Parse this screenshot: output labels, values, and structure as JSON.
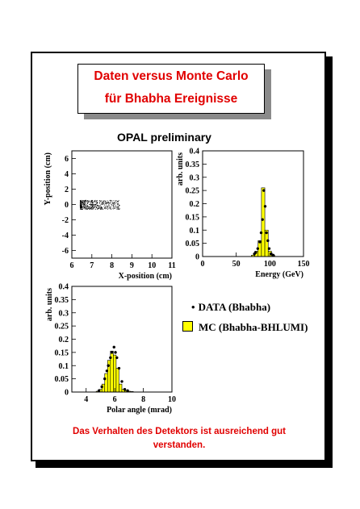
{
  "title": {
    "line1": "Daten versus Monte Carlo",
    "line2": "für Bhabha Ereignisse"
  },
  "subtitle": "OPAL preliminary",
  "legend": {
    "data_marker": "•",
    "data_label": "DATA (Bhabha)",
    "mc_label": "MC (Bhabha-BHLUMI)",
    "mc_color": "#ffff00"
  },
  "footer": "Das Verhalten des Detektors ist ausreichend gut verstanden.",
  "chart_data": [
    {
      "type": "scatter",
      "xlabel": "X-position (cm)",
      "ylabel": "Y-position (cm)",
      "xlim": [
        6,
        11
      ],
      "ylim": [
        -7,
        7
      ],
      "xticks": [
        6,
        7,
        8,
        9,
        10,
        11
      ],
      "yticks": [
        -6,
        -4,
        -2,
        0,
        2,
        4,
        6
      ],
      "series": [
        {
          "cluster": {
            "x_range": [
              6.4,
              8.4
            ],
            "y_range": [
              -0.6,
              0.6
            ],
            "center_x": 7.2
          }
        }
      ]
    },
    {
      "type": "bar",
      "xlabel": "Energy (GeV)",
      "ylabel": "arb. units",
      "xlim": [
        0,
        150
      ],
      "ylim": [
        0,
        0.4
      ],
      "xticks": [
        0,
        50,
        100,
        150
      ],
      "yticks": [
        0,
        0.05,
        0.1,
        0.15,
        0.2,
        0.25,
        0.3,
        0.35,
        0.4
      ],
      "bin_width": 5,
      "mc_bins": [
        {
          "x": 75,
          "y": 0.005
        },
        {
          "x": 80,
          "y": 0.02
        },
        {
          "x": 85,
          "y": 0.06
        },
        {
          "x": 90,
          "y": 0.26
        },
        {
          "x": 95,
          "y": 0.1
        },
        {
          "x": 100,
          "y": 0.02
        },
        {
          "x": 105,
          "y": 0.004
        }
      ],
      "data_points": [
        {
          "x": 77,
          "y": 0.01
        },
        {
          "x": 79,
          "y": 0.015
        },
        {
          "x": 82,
          "y": 0.03
        },
        {
          "x": 85,
          "y": 0.055
        },
        {
          "x": 87,
          "y": 0.09
        },
        {
          "x": 89,
          "y": 0.14
        },
        {
          "x": 91,
          "y": 0.25
        },
        {
          "x": 93,
          "y": 0.19
        },
        {
          "x": 95,
          "y": 0.09
        },
        {
          "x": 97,
          "y": 0.06
        },
        {
          "x": 99,
          "y": 0.03
        },
        {
          "x": 102,
          "y": 0.01
        },
        {
          "x": 105,
          "y": 0.005
        }
      ]
    },
    {
      "type": "bar",
      "xlabel": "Polar angle (mrad)",
      "ylabel": "arb. units",
      "xlim": [
        3,
        10
      ],
      "ylim": [
        0,
        0.4
      ],
      "xticks": [
        4,
        6,
        8,
        10
      ],
      "yticks": [
        0,
        0.05,
        0.1,
        0.15,
        0.2,
        0.25,
        0.3,
        0.35,
        0.4
      ],
      "bin_width": 0.2,
      "mc_bins": [
        {
          "x": 4.8,
          "y": 0.003
        },
        {
          "x": 5.0,
          "y": 0.01
        },
        {
          "x": 5.2,
          "y": 0.03
        },
        {
          "x": 5.4,
          "y": 0.07
        },
        {
          "x": 5.6,
          "y": 0.12
        },
        {
          "x": 5.8,
          "y": 0.155
        },
        {
          "x": 6.0,
          "y": 0.14
        },
        {
          "x": 6.2,
          "y": 0.09
        },
        {
          "x": 6.4,
          "y": 0.03
        },
        {
          "x": 6.6,
          "y": 0.01
        },
        {
          "x": 6.8,
          "y": 0.005
        },
        {
          "x": 7.0,
          "y": 0.003
        },
        {
          "x": 7.2,
          "y": 0.002
        }
      ],
      "data_points": [
        {
          "x": 4.9,
          "y": 0.005
        },
        {
          "x": 5.1,
          "y": 0.02
        },
        {
          "x": 5.3,
          "y": 0.05
        },
        {
          "x": 5.45,
          "y": 0.08
        },
        {
          "x": 5.55,
          "y": 0.1
        },
        {
          "x": 5.7,
          "y": 0.13
        },
        {
          "x": 5.8,
          "y": 0.15
        },
        {
          "x": 5.95,
          "y": 0.17
        },
        {
          "x": 6.05,
          "y": 0.15
        },
        {
          "x": 6.15,
          "y": 0.13
        },
        {
          "x": 6.3,
          "y": 0.09
        },
        {
          "x": 6.5,
          "y": 0.04
        },
        {
          "x": 6.7,
          "y": 0.01
        },
        {
          "x": 6.9,
          "y": 0.005
        }
      ]
    }
  ]
}
